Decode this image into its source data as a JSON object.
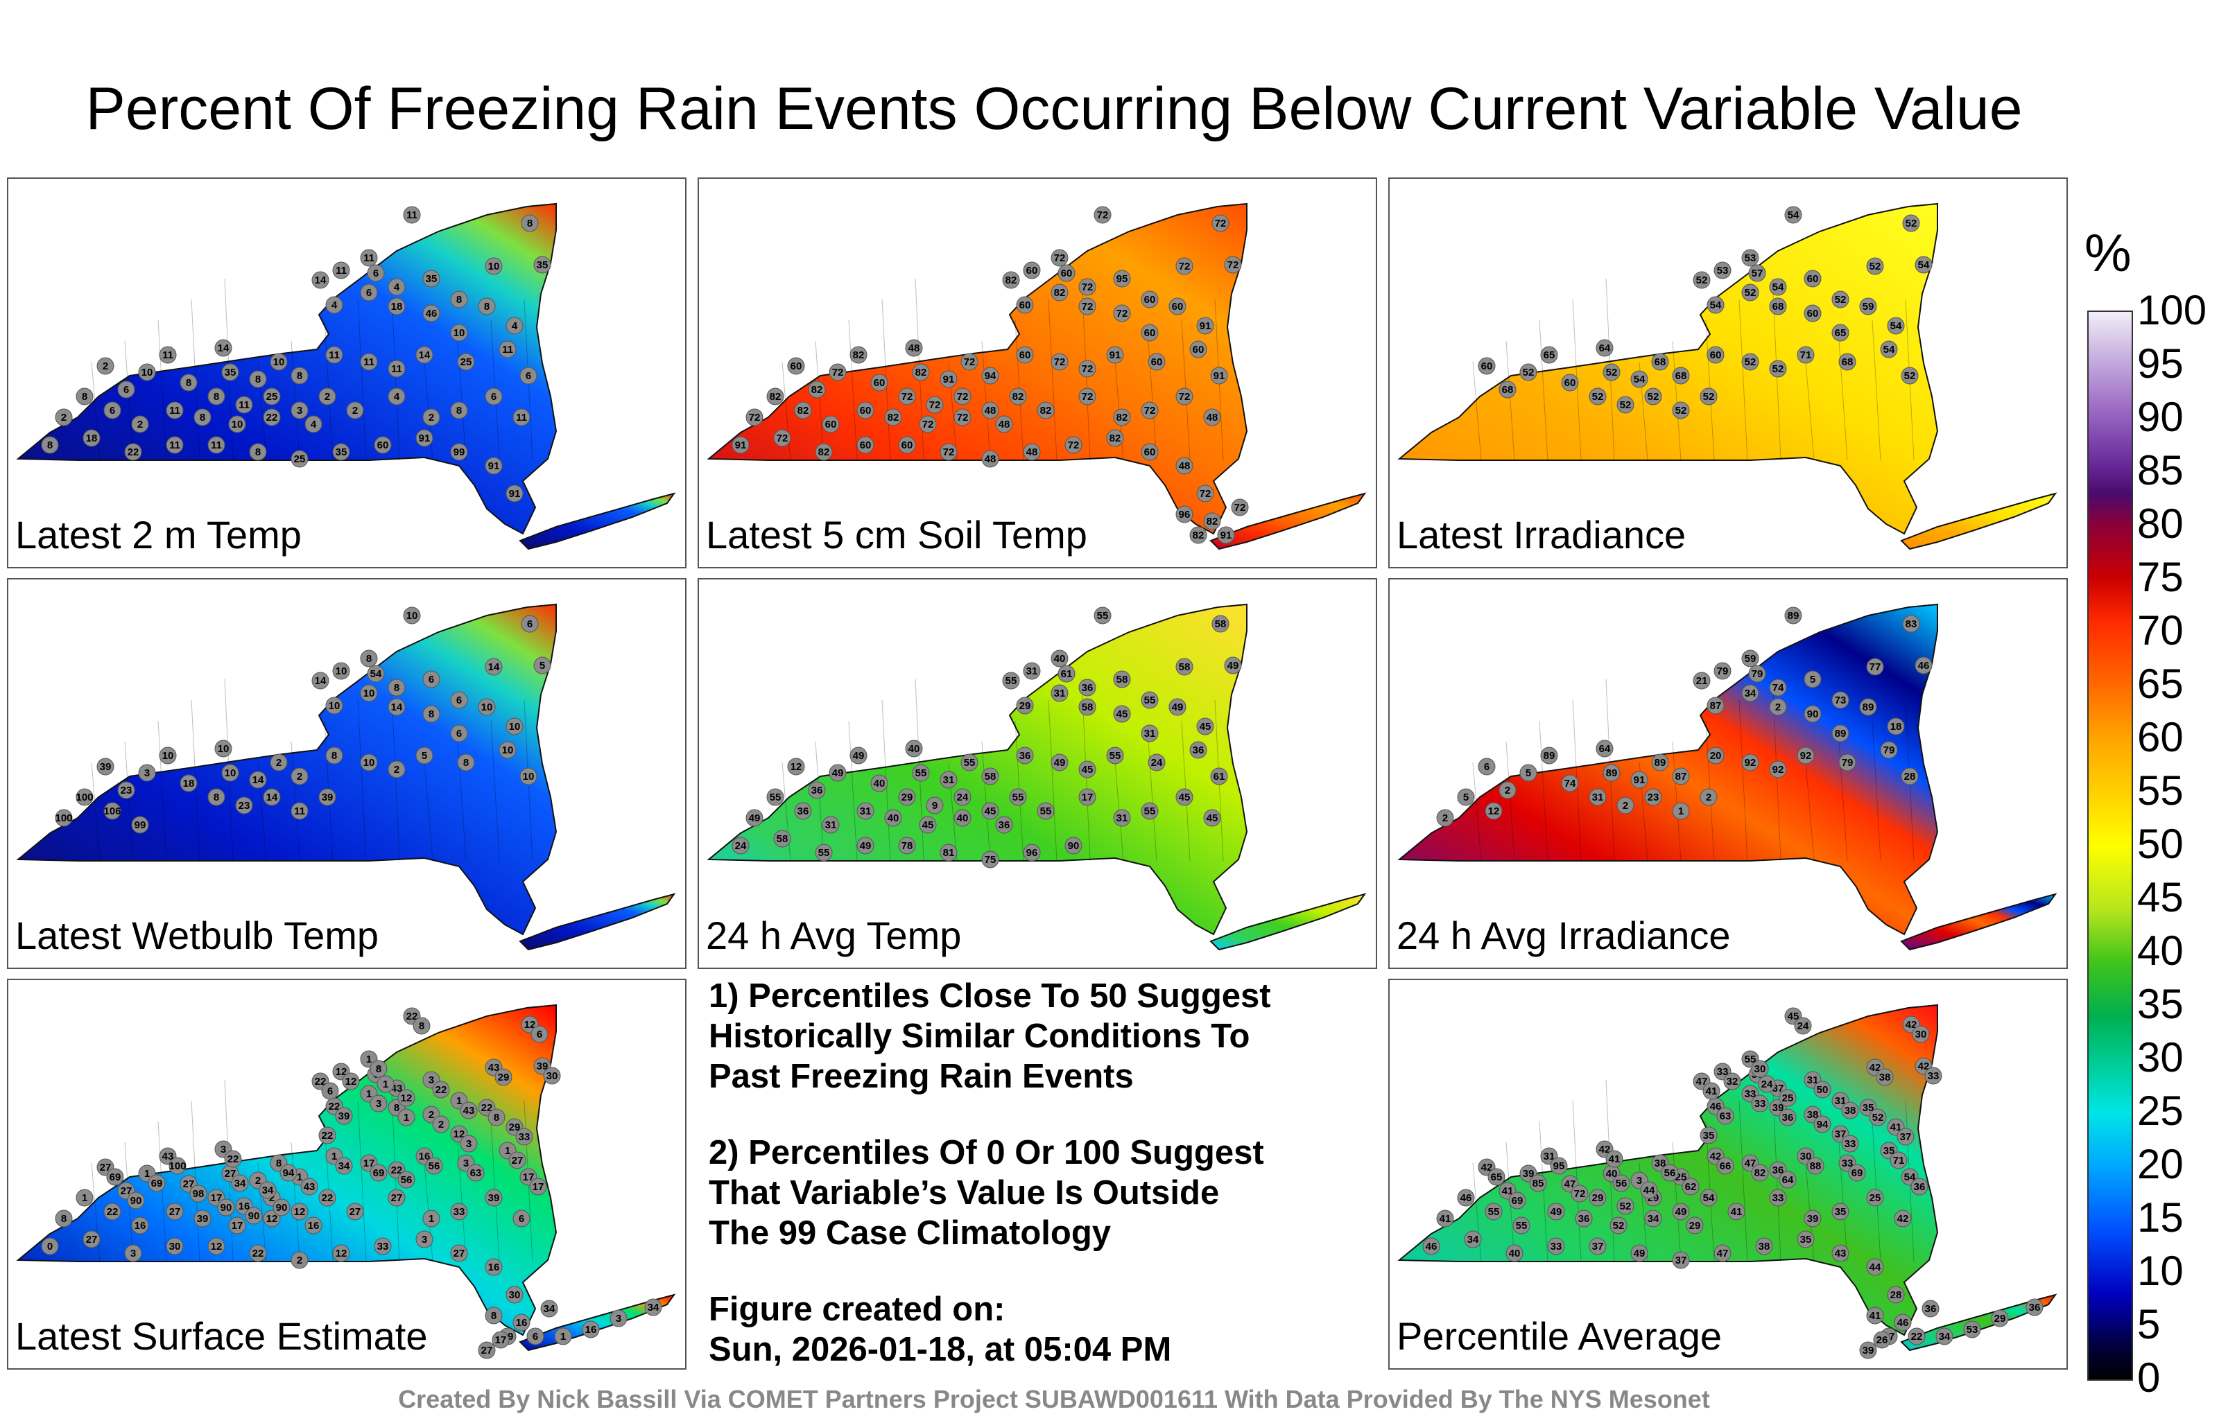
{
  "title": "Percent Of Freezing Rain Events Occurring Below Current Variable Value",
  "panels": [
    {
      "label": "Latest 2 m Temp",
      "palette": "cold",
      "values": [
        "11",
        "8",
        "35",
        "14",
        "11",
        "11",
        "6",
        "4",
        "35",
        "8",
        "10",
        "8",
        "4",
        "4",
        "6",
        "18",
        "46",
        "10",
        "11",
        "6",
        "14",
        "35",
        "8",
        "10",
        "8",
        "11",
        "11",
        "11",
        "14",
        "25",
        "2",
        "6",
        "10",
        "11",
        "8",
        "8",
        "11",
        "25",
        "3",
        "2",
        "2",
        "8",
        "6",
        "2",
        "11",
        "8",
        "10",
        "22",
        "4",
        "2",
        "4",
        "2",
        "8",
        "6",
        "11",
        "8",
        "18",
        "22",
        "11",
        "11",
        "8",
        "25",
        "35",
        "60",
        "91",
        "99",
        "91",
        "91"
      ]
    },
    {
      "label": "Latest 5 cm Soil Temp",
      "palette": "warm",
      "values": [
        "72",
        "72",
        "72",
        "82",
        "60",
        "72",
        "60",
        "72",
        "95",
        "60",
        "72",
        "60",
        "91",
        "60",
        "82",
        "72",
        "72",
        "60",
        "60",
        "91",
        "48",
        "82",
        "91",
        "72",
        "94",
        "60",
        "72",
        "72",
        "91",
        "60",
        "60",
        "82",
        "72",
        "82",
        "60",
        "72",
        "72",
        "72",
        "48",
        "82",
        "72",
        "82",
        "82",
        "60",
        "60",
        "82",
        "72",
        "72",
        "48",
        "82",
        "72",
        "82",
        "72",
        "72",
        "48",
        "91",
        "72",
        "82",
        "60",
        "60",
        "72",
        "48",
        "48",
        "72",
        "82",
        "60",
        "48",
        "72",
        "96",
        "82",
        "91",
        "72",
        "82"
      ]
    },
    {
      "label": "Latest Irradiance",
      "palette": "yellow",
      "values": [
        "54",
        "52",
        "54",
        "52",
        "53",
        "53",
        "57",
        "54",
        "60",
        "52",
        "52",
        "59",
        "54",
        "54",
        "52",
        "68",
        "60",
        "65",
        "54",
        "52",
        "64",
        "52",
        "54",
        "68",
        "68",
        "60",
        "52",
        "52",
        "71",
        "68",
        "60",
        "68",
        "52",
        "65",
        "60",
        "52",
        "52",
        "52",
        "52",
        "52"
      ]
    },
    {
      "label": "Latest Wetbulb Temp",
      "palette": "cold",
      "values": [
        "10",
        "6",
        "5",
        "14",
        "10",
        "8",
        "54",
        "8",
        "6",
        "6",
        "14",
        "10",
        "10",
        "10",
        "10",
        "14",
        "8",
        "6",
        "10",
        "10",
        "10",
        "10",
        "14",
        "2",
        "2",
        "8",
        "10",
        "2",
        "5",
        "8",
        "39",
        "23",
        "3",
        "10",
        "18",
        "8",
        "23",
        "14",
        "11",
        "39",
        "100",
        "100",
        "106",
        "99"
      ]
    },
    {
      "label": "24 h Avg Temp",
      "palette": "mid",
      "values": [
        "55",
        "58",
        "49",
        "55",
        "31",
        "40",
        "61",
        "36",
        "58",
        "55",
        "58",
        "49",
        "45",
        "29",
        "31",
        "58",
        "45",
        "31",
        "36",
        "61",
        "40",
        "55",
        "31",
        "55",
        "58",
        "36",
        "49",
        "45",
        "55",
        "24",
        "12",
        "36",
        "49",
        "49",
        "40",
        "29",
        "9",
        "24",
        "45",
        "55",
        "49",
        "55",
        "36",
        "31",
        "31",
        "40",
        "45",
        "40",
        "36",
        "55",
        "17",
        "31",
        "55",
        "45",
        "45",
        "24",
        "58",
        "55",
        "49",
        "78",
        "81",
        "75",
        "96",
        "90"
      ]
    },
    {
      "label": "24 h Avg Irradiance",
      "palette": "contrast",
      "values": [
        "89",
        "83",
        "46",
        "21",
        "79",
        "59",
        "79",
        "74",
        "5",
        "73",
        "77",
        "89",
        "18",
        "87",
        "34",
        "2",
        "90",
        "89",
        "79",
        "28",
        "64",
        "89",
        "91",
        "89",
        "87",
        "20",
        "92",
        "92",
        "92",
        "79",
        "6",
        "2",
        "5",
        "89",
        "74",
        "31",
        "2",
        "23",
        "1",
        "2",
        "2",
        "5",
        "12"
      ]
    },
    {
      "label": "Latest Surface Estimate",
      "palette": "surface",
      "values": [
        "22",
        "12",
        "39",
        "22",
        "12",
        "1",
        "6",
        "43",
        "3",
        "1",
        "43",
        "22",
        "29",
        "22",
        "1",
        "8",
        "2",
        "12",
        "1",
        "17",
        "3",
        "27",
        "2",
        "8",
        "1",
        "1",
        "17",
        "22",
        "16",
        "3",
        "27",
        "27",
        "1",
        "43",
        "27",
        "17",
        "16",
        "2",
        "12",
        "22",
        "8",
        "1",
        "22",
        "16",
        "27",
        "39",
        "17",
        "12",
        "16",
        "27",
        "27",
        "1",
        "33",
        "39",
        "6",
        "0",
        "27",
        "3",
        "30",
        "12",
        "22",
        "2",
        "12",
        "33",
        "3",
        "27",
        "16",
        "30",
        "8",
        "16",
        "6",
        "34",
        "29",
        "3",
        "34",
        "16",
        "1",
        "27",
        "17",
        "22",
        "8",
        "6",
        "30",
        "6",
        "12",
        "8",
        "1",
        "12",
        "22",
        "43",
        "29",
        "8",
        "33",
        "39",
        "3",
        "1",
        "2",
        "3",
        "27",
        "17",
        "22",
        "34",
        "34",
        "94",
        "43",
        "34",
        "69",
        "56",
        "56",
        "63",
        "69",
        "90",
        "69",
        "100",
        "98",
        "90",
        "90",
        "90"
      ]
    },
    {
      "label": "Percentile Average",
      "palette": "average",
      "values": [
        "45",
        "42",
        "42",
        "47",
        "33",
        "55",
        "39",
        "37",
        "31",
        "31",
        "42",
        "35",
        "41",
        "46",
        "33",
        "39",
        "38",
        "37",
        "35",
        "54",
        "42",
        "40",
        "3",
        "38",
        "25",
        "42",
        "47",
        "36",
        "30",
        "33",
        "42",
        "41",
        "39",
        "31",
        "47",
        "29",
        "52",
        "29",
        "49",
        "54",
        "41",
        "46",
        "55",
        "55",
        "49",
        "36",
        "52",
        "34",
        "29",
        "41",
        "33",
        "39",
        "35",
        "25",
        "42",
        "46",
        "34",
        "40",
        "33",
        "37",
        "49",
        "37",
        "47",
        "38",
        "35",
        "43",
        "44",
        "28",
        "41",
        "46",
        "22",
        "36",
        "37",
        "29",
        "36",
        "53",
        "34",
        "39",
        "26",
        "35",
        "24",
        "30",
        "33",
        "41",
        "32",
        "30",
        "24",
        "25",
        "50",
        "38",
        "38",
        "52",
        "37",
        "63",
        "33",
        "36",
        "94",
        "33",
        "71",
        "36",
        "41",
        "56",
        "44",
        "56",
        "62",
        "66",
        "82",
        "64",
        "88",
        "69",
        "65",
        "69",
        "85",
        "95",
        "72"
      ]
    }
  ],
  "notes": {
    "line1": "1) Percentiles Close To 50 Suggest",
    "line2": "Historically Similar Conditions To",
    "line3": "Past Freezing Rain Events",
    "line4": "2) Percentiles Of 0 Or 100 Suggest",
    "line5": "That Variable’s Value Is Outside",
    "line6": "The 99 Case Climatology",
    "line7": "Figure created on:",
    "line8": "Sun, 2026-01-18, at 05:04 PM"
  },
  "colorbar": {
    "unit": "%",
    "ticks": [
      "100",
      "95",
      "90",
      "85",
      "80",
      "75",
      "70",
      "65",
      "60",
      "55",
      "50",
      "45",
      "40",
      "35",
      "30",
      "25",
      "20",
      "15",
      "10",
      "5",
      "0"
    ]
  },
  "footer": "Created By Nick Bassill Via COMET Partners Project SUBAWD001611 With Data Provided By The NYS Mesonet"
}
